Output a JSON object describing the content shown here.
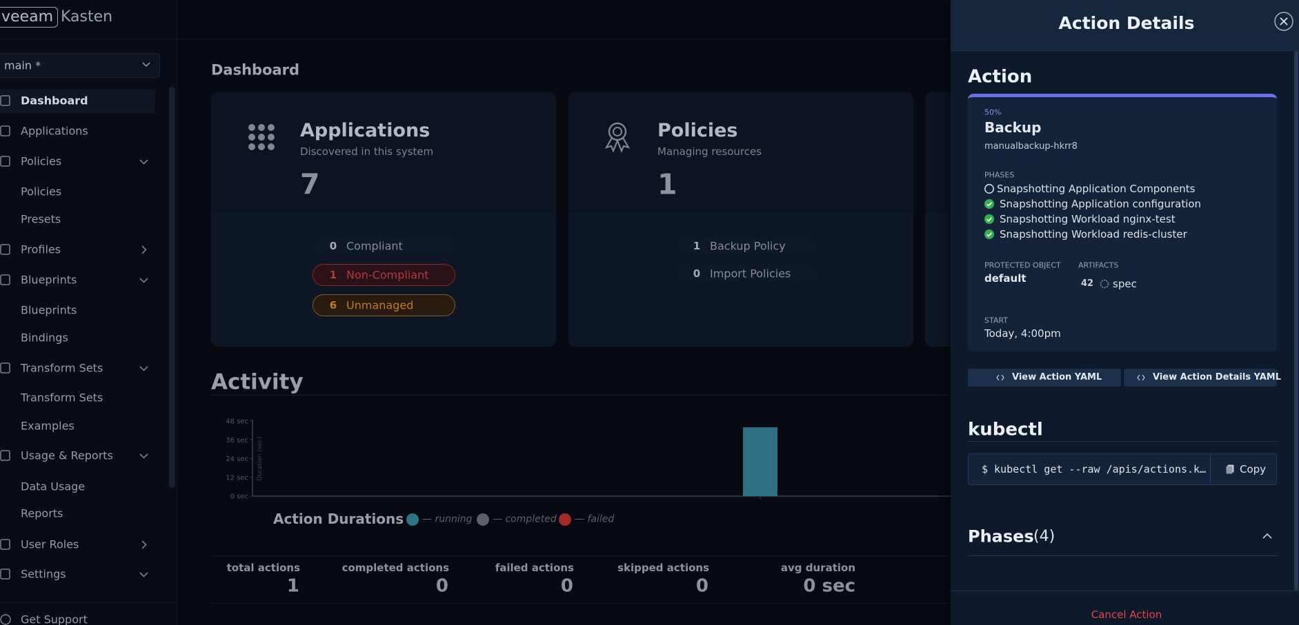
{
  "sidebar": {
    "brand": "veeam",
    "product": "Kasten",
    "cluster": "main *",
    "nav": [
      "Dashboard",
      "Applications",
      "Policies",
      "Policies",
      "Presets",
      "Profiles",
      "Blueprints",
      "Blueprints",
      "Bindings",
      "Transform Sets",
      "Transform Sets",
      "Examples",
      "Usage & Reports",
      "Data Usage",
      "Reports",
      "User Roles",
      "Settings"
    ],
    "footer": "Get Support"
  },
  "dashboard": {
    "title": "Dashboard",
    "cards": [
      {
        "title": "Applications",
        "subtitle": "Discovered in this system",
        "count": 7,
        "stats": [
          {
            "count": 0,
            "label": "Compliant"
          },
          {
            "count": 1,
            "label": "Non-Compliant"
          },
          {
            "count": 6,
            "label": "Unmanaged"
          }
        ]
      },
      {
        "title": "Policies",
        "subtitle": "Managing resources",
        "count": 1,
        "stats": [
          {
            "count": 1,
            "label": "Backup Policy"
          },
          {
            "count": 0,
            "label": "Import Policies"
          }
        ]
      }
    ]
  },
  "activity": {
    "title": "Activity",
    "chart": {
      "type": "bar",
      "title": "Action Durations",
      "ylabel": "Duration (sec)",
      "categories": [
        null
      ],
      "values": [
        44
      ],
      "color": "#2d6e82",
      "ylim": [
        0,
        48
      ],
      "yticks": [
        {
          "value": 0,
          "label": "0 sec"
        },
        {
          "value": 12,
          "label": "12 sec"
        },
        {
          "value": 24,
          "label": "24 sec"
        },
        {
          "value": 36,
          "label": "36 sec"
        },
        {
          "value": 48,
          "label": "48 sec"
        }
      ],
      "legend": [
        {
          "name": "— running",
          "color": "#2c7487"
        },
        {
          "name": "— completed",
          "color": "#5d6166"
        },
        {
          "name": "— failed",
          "color": "#a52b29"
        }
      ]
    },
    "summary": [
      {
        "label": "total actions",
        "value": 1
      },
      {
        "label": "completed actions",
        "value": 0
      },
      {
        "label": "failed actions",
        "value": 0
      },
      {
        "label": "skipped actions",
        "value": 0
      },
      {
        "label": "avg duration",
        "value": "0 sec"
      }
    ]
  },
  "drawer": {
    "title": "Action Details",
    "section": "Action",
    "progress": "50%",
    "action": "Backup",
    "action_id": "manualbackup-hkrr8",
    "phases_label": "PHASES",
    "phases": [
      {
        "label": "Snapshotting Application Components",
        "complete": false
      },
      {
        "label": "Snapshotting Application configuration",
        "complete": true
      },
      {
        "label": "Snapshotting Workload nginx-test",
        "complete": true
      },
      {
        "label": "Snapshotting Workload redis-cluster",
        "complete": true
      }
    ],
    "protected_label": "PROTECTED OBJECT",
    "protected": "default",
    "artifacts_label": "ARTIFACTS",
    "artifacts_count": 42,
    "artifacts_kind": "spec",
    "start_label": "START",
    "start": "Today, 4:00pm",
    "buttons": [
      "View Action YAML",
      "View Action Details YAML"
    ],
    "kubectl_title": "kubectl",
    "command": "$ kubectl get --raw /apis/actions.k…",
    "copy": "Copy",
    "phases_title": "Phases",
    "phases_count": "(4)",
    "cancel": "Cancel Action"
  }
}
